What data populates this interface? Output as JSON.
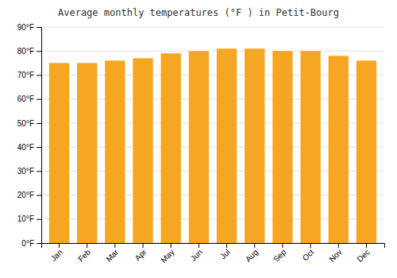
{
  "chart_data": {
    "type": "bar",
    "title": "Average monthly temperatures (°F ) in Petit-Bourg",
    "categories": [
      "Jan",
      "Feb",
      "Mar",
      "Apr",
      "May",
      "Jun",
      "Jul",
      "Aug",
      "Sep",
      "Oct",
      "Nov",
      "Dec"
    ],
    "values": [
      75,
      75,
      76,
      77,
      79,
      80,
      81,
      81,
      80,
      80,
      78,
      76
    ],
    "color": "#F5A623",
    "ylim": [
      0,
      90
    ],
    "yticks": [
      {
        "value": 0,
        "label": "0°F"
      },
      {
        "value": 10,
        "label": "10°F"
      },
      {
        "value": 20,
        "label": "20°F"
      },
      {
        "value": 30,
        "label": "30°F"
      },
      {
        "value": 40,
        "label": "40°F"
      },
      {
        "value": 50,
        "label": "50°F"
      },
      {
        "value": 60,
        "label": "60°F"
      },
      {
        "value": 70,
        "label": "70°F"
      },
      {
        "value": 80,
        "label": "80°F"
      },
      {
        "value": 90,
        "label": "90°F"
      }
    ],
    "grid": true
  }
}
